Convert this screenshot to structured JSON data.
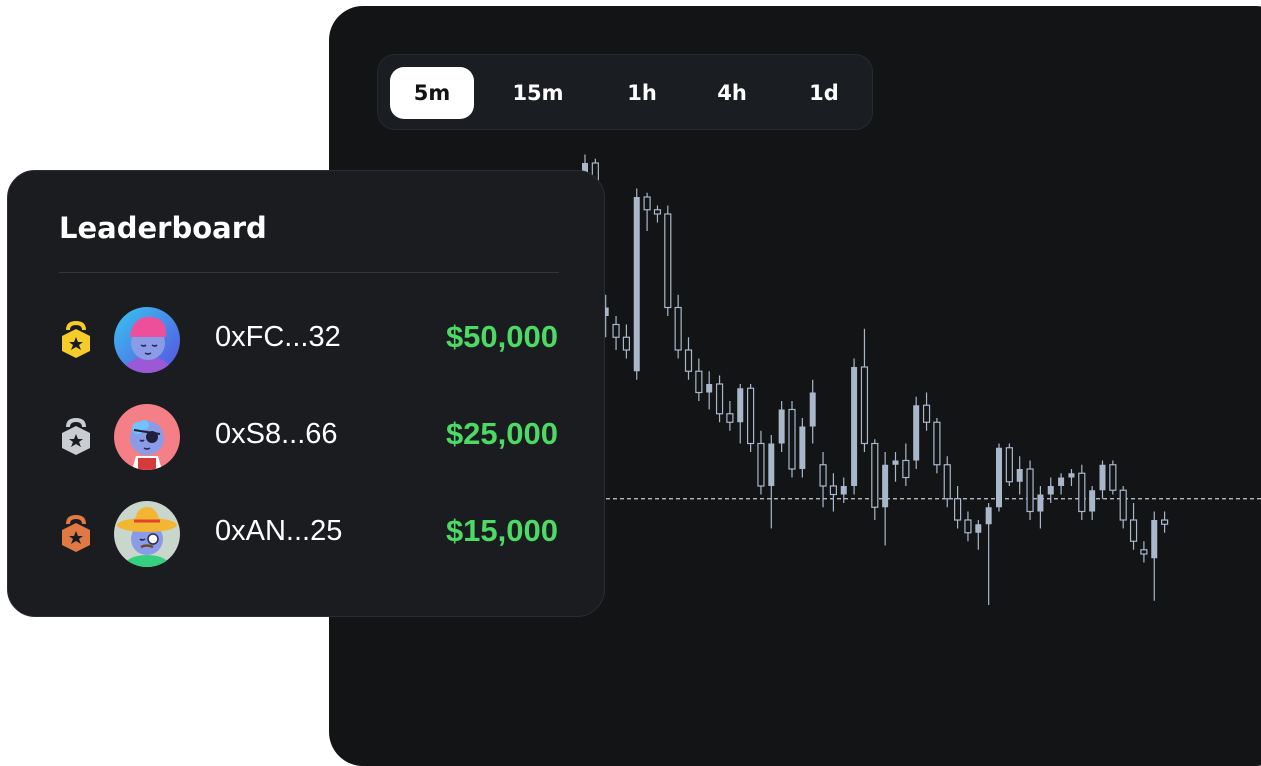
{
  "timeframes": {
    "items": [
      "5m",
      "15m",
      "1h",
      "4h",
      "1d"
    ],
    "active": "5m"
  },
  "leaderboard": {
    "title": "Leaderboard",
    "rows": [
      {
        "rank": 1,
        "medal": "gold-medal-icon",
        "medal_color": "#f5cc2a",
        "address": "0xFC...32",
        "amount": "$50,000"
      },
      {
        "rank": 2,
        "medal": "silver-medal-icon",
        "medal_color": "#c9ccd1",
        "address": "0xS8...66",
        "amount": "$25,000"
      },
      {
        "rank": 3,
        "medal": "bronze-medal-icon",
        "medal_color": "#e07a45",
        "address": "0xAN...25",
        "amount": "$15,000"
      }
    ]
  },
  "colors": {
    "panel_bg": "#121416",
    "card_bg": "#1a1c20",
    "candle": "#a9b7cb",
    "amount_green": "#4cd964"
  },
  "chart_data": {
    "type": "candlestick",
    "ylim": [
      0,
      100
    ],
    "reference_line": 17,
    "candles": [
      {
        "o": 92,
        "h": 98,
        "l": 85,
        "c": 96
      },
      {
        "o": 96,
        "h": 97,
        "l": 88,
        "c": 90
      },
      {
        "o": 60,
        "h": 65,
        "l": 55,
        "c": 62
      },
      {
        "o": 58,
        "h": 60,
        "l": 52,
        "c": 55
      },
      {
        "o": 55,
        "h": 58,
        "l": 50,
        "c": 52
      },
      {
        "o": 47,
        "h": 90,
        "l": 45,
        "c": 88
      },
      {
        "o": 88,
        "h": 89,
        "l": 80,
        "c": 85
      },
      {
        "o": 85,
        "h": 86,
        "l": 82,
        "c": 84
      },
      {
        "o": 84,
        "h": 86,
        "l": 60,
        "c": 62
      },
      {
        "o": 62,
        "h": 65,
        "l": 50,
        "c": 52
      },
      {
        "o": 52,
        "h": 55,
        "l": 45,
        "c": 47
      },
      {
        "o": 47,
        "h": 50,
        "l": 40,
        "c": 42
      },
      {
        "o": 42,
        "h": 47,
        "l": 38,
        "c": 44
      },
      {
        "o": 44,
        "h": 46,
        "l": 35,
        "c": 37
      },
      {
        "o": 37,
        "h": 40,
        "l": 33,
        "c": 35
      },
      {
        "o": 35,
        "h": 44,
        "l": 30,
        "c": 43
      },
      {
        "o": 43,
        "h": 44,
        "l": 28,
        "c": 30
      },
      {
        "o": 30,
        "h": 33,
        "l": 18,
        "c": 20
      },
      {
        "o": 20,
        "h": 32,
        "l": 10,
        "c": 30
      },
      {
        "o": 30,
        "h": 40,
        "l": 28,
        "c": 38
      },
      {
        "o": 38,
        "h": 40,
        "l": 22,
        "c": 24
      },
      {
        "o": 24,
        "h": 36,
        "l": 22,
        "c": 34
      },
      {
        "o": 34,
        "h": 45,
        "l": 30,
        "c": 42
      },
      {
        "o": 25,
        "h": 28,
        "l": 15,
        "c": 20
      },
      {
        "o": 20,
        "h": 23,
        "l": 14,
        "c": 18
      },
      {
        "o": 18,
        "h": 22,
        "l": 16,
        "c": 20
      },
      {
        "o": 20,
        "h": 50,
        "l": 18,
        "c": 48
      },
      {
        "o": 48,
        "h": 57,
        "l": 28,
        "c": 30
      },
      {
        "o": 30,
        "h": 31,
        "l": 12,
        "c": 15
      },
      {
        "o": 15,
        "h": 28,
        "l": 6,
        "c": 25
      },
      {
        "o": 25,
        "h": 28,
        "l": 21,
        "c": 26
      },
      {
        "o": 26,
        "h": 30,
        "l": 20,
        "c": 22
      },
      {
        "o": 26,
        "h": 41,
        "l": 24,
        "c": 39
      },
      {
        "o": 39,
        "h": 42,
        "l": 33,
        "c": 35
      },
      {
        "o": 35,
        "h": 36,
        "l": 23,
        "c": 25
      },
      {
        "o": 25,
        "h": 27,
        "l": 15,
        "c": 17
      },
      {
        "o": 17,
        "h": 20,
        "l": 10,
        "c": 12
      },
      {
        "o": 12,
        "h": 14,
        "l": 7,
        "c": 9
      },
      {
        "o": 9,
        "h": 12,
        "l": 5,
        "c": 11
      },
      {
        "o": 11,
        "h": 16,
        "l": -8,
        "c": 15
      },
      {
        "o": 15,
        "h": 30,
        "l": 14,
        "c": 29
      },
      {
        "o": 29,
        "h": 30,
        "l": 20,
        "c": 21
      },
      {
        "o": 21,
        "h": 27,
        "l": 18,
        "c": 24
      },
      {
        "o": 24,
        "h": 26,
        "l": 12,
        "c": 14
      },
      {
        "o": 14,
        "h": 20,
        "l": 10,
        "c": 18
      },
      {
        "o": 18,
        "h": 22,
        "l": 16,
        "c": 20
      },
      {
        "o": 20,
        "h": 23,
        "l": 18,
        "c": 22
      },
      {
        "o": 22,
        "h": 24,
        "l": 20,
        "c": 23
      },
      {
        "o": 23,
        "h": 25,
        "l": 12,
        "c": 14
      },
      {
        "o": 14,
        "h": 20,
        "l": 12,
        "c": 19
      },
      {
        "o": 19,
        "h": 26,
        "l": 17,
        "c": 25
      },
      {
        "o": 25,
        "h": 26,
        "l": 18,
        "c": 19
      },
      {
        "o": 19,
        "h": 20,
        "l": 10,
        "c": 12
      },
      {
        "o": 12,
        "h": 16,
        "l": 5,
        "c": 7
      },
      {
        "o": 5,
        "h": 7,
        "l": 2,
        "c": 4
      },
      {
        "o": 3,
        "h": 14,
        "l": -7,
        "c": 12
      },
      {
        "o": 12,
        "h": 14,
        "l": 9,
        "c": 11
      }
    ]
  }
}
